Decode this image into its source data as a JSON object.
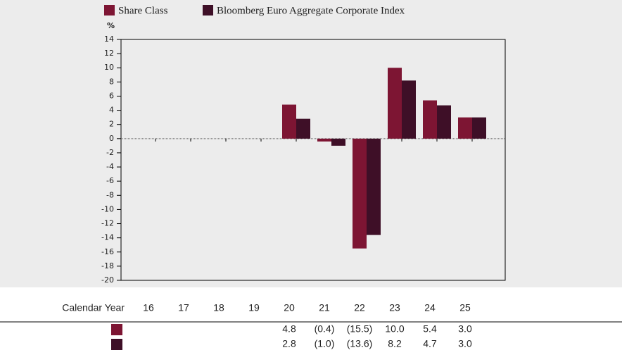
{
  "chart_data": {
    "type": "bar",
    "y_label": "%",
    "categories_label": "Calendar Year",
    "categories": [
      "16",
      "17",
      "18",
      "19",
      "20",
      "21",
      "22",
      "23",
      "24",
      "25"
    ],
    "series": [
      {
        "name": "Share Class",
        "color": "#7d1533",
        "values": [
          null,
          null,
          null,
          null,
          4.8,
          -0.4,
          -15.5,
          10.0,
          5.4,
          3.0
        ],
        "value_labels": [
          null,
          null,
          null,
          null,
          "4.8",
          "(0.4)",
          "(15.5)",
          "10.0",
          "5.4",
          "3.0"
        ]
      },
      {
        "name": "Bloomberg Euro Aggregate Corporate Index",
        "color": "#3e0f27",
        "values": [
          null,
          null,
          null,
          null,
          2.8,
          -1.0,
          -13.6,
          8.2,
          4.7,
          3.0
        ],
        "value_labels": [
          null,
          null,
          null,
          null,
          "2.8",
          "(1.0)",
          "(13.6)",
          "8.2",
          "4.7",
          "3.0"
        ]
      }
    ],
    "ylim": [
      -20,
      14
    ],
    "yticks": [
      -20,
      -18,
      -16,
      -14,
      -12,
      -10,
      -8,
      -6,
      -4,
      -2,
      0,
      2,
      4,
      6,
      8,
      10,
      12,
      14
    ],
    "grid": false
  }
}
